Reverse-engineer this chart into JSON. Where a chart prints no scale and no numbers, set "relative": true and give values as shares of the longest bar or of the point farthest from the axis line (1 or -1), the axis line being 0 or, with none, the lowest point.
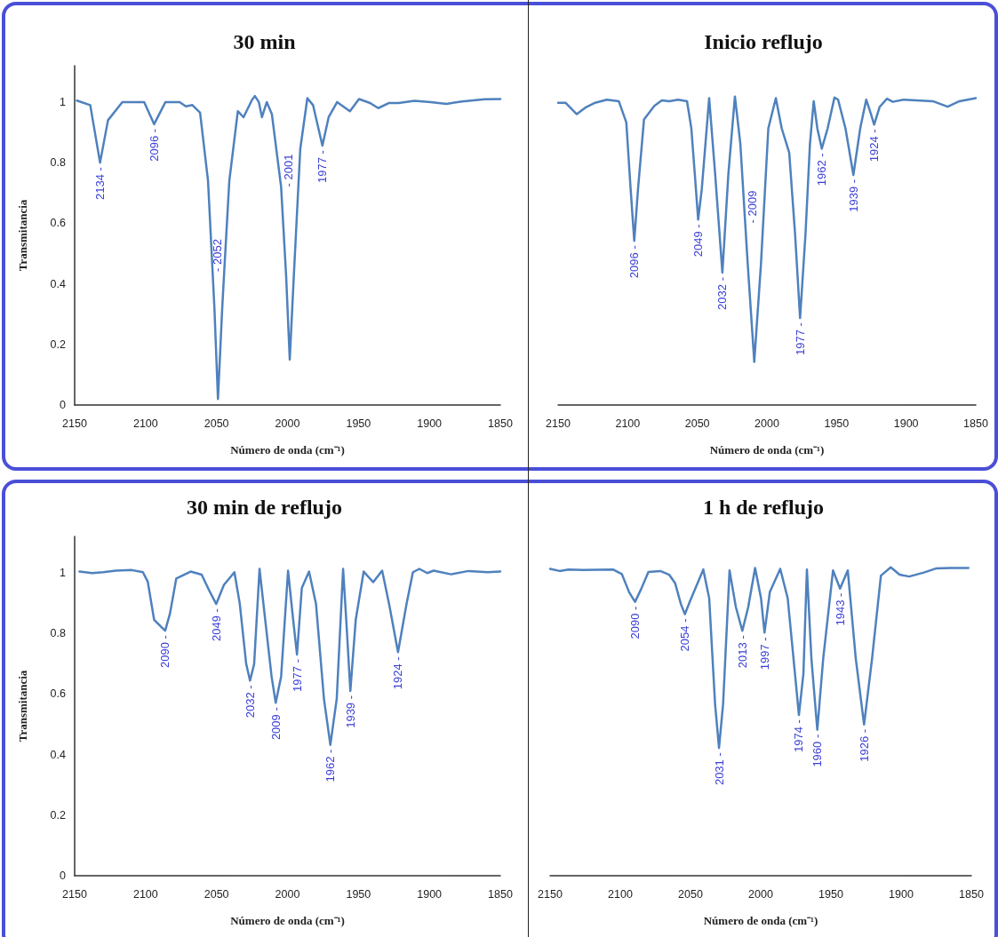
{
  "chart_data": [
    {
      "type": "line",
      "title": "30 min",
      "xlabel": "Número de onda (cm⁻¹)",
      "ylabel": "Transmitancia",
      "color": "#4f81bd",
      "xlim": [
        2150,
        1850
      ],
      "xticks": [
        2150,
        2100,
        2050,
        2000,
        1950,
        1900,
        1850
      ],
      "ylim": [
        0,
        1.12
      ],
      "yticks": [
        0,
        0.2,
        0.4,
        0.6,
        0.8,
        1
      ],
      "x": [
        2148.4,
        2139,
        2132.1,
        2126.5,
        2116.4,
        2101,
        2094,
        2086,
        2076,
        2071.6,
        2067,
        2061.6,
        2056,
        2051.5,
        2049,
        2046,
        2044.6,
        2041,
        2035,
        2031,
        2025,
        2023,
        2020.2,
        2018,
        2014.6,
        2011,
        2004.5,
        2001,
        1998.4,
        1995.5,
        1991,
        1986,
        1982,
        1975.4,
        1971,
        1965,
        1956,
        1949.6,
        1941.8,
        1936,
        1928.4,
        1921.7,
        1910.5,
        1899,
        1888,
        1877,
        1861,
        1850
      ],
      "values": [
        1.005,
        0.99,
        0.8,
        0.94,
        1.0,
        1.0,
        0.927,
        1.0,
        1.0,
        0.986,
        0.99,
        0.965,
        0.74,
        0.32,
        0.02,
        0.32,
        0.44,
        0.74,
        0.97,
        0.95,
        1.007,
        1.02,
        1.0,
        0.95,
        1.0,
        0.96,
        0.72,
        0.43,
        0.15,
        0.43,
        0.845,
        1.013,
        0.99,
        0.856,
        0.95,
        1.0,
        0.97,
        1.01,
        0.997,
        0.98,
        0.997,
        0.997,
        1.004,
        1.0,
        0.994,
        1.002,
        1.009,
        1.01
      ],
      "annotations": [
        {
          "text": "2134 -",
          "x": 2132.1,
          "y": 0.8
        },
        {
          "text": "2096 -",
          "x": 2094,
          "y": 0.927
        },
        {
          "text": "- 2052",
          "x": 2044.6,
          "y": 0.44
        },
        {
          "text": "- 2001",
          "x": 2004.5,
          "y": 0.72
        },
        {
          "text": "1977 -",
          "x": 1975.4,
          "y": 0.856
        }
      ]
    },
    {
      "type": "line",
      "title": "Inicio reflujo",
      "xlabel": "Número de onda (cm⁻¹)",
      "color": "#4f81bd",
      "xlim": [
        2150,
        1850
      ],
      "xticks": [
        2150,
        2100,
        2050,
        2000,
        1950,
        1900,
        1850
      ],
      "relative": true,
      "tick_labels": "x",
      "x": [
        2150,
        2144.7,
        2136.6,
        2129.8,
        2123.4,
        2115,
        2106.4,
        2101,
        2097.9,
        2095.3,
        2092.6,
        2088.3,
        2080.9,
        2075.5,
        2070.2,
        2063.8,
        2057.4,
        2054.3,
        2051,
        2049.4,
        2046.8,
        2041.5,
        2037.2,
        2032,
        2027.7,
        2023,
        2019.1,
        2015.6,
        2013.8,
        2009.1,
        2004.3,
        1999,
        1993.6,
        1989.4,
        1984,
        1979.8,
        1976.2,
        1972.3,
        1969.1,
        1966.4,
        1963.8,
        1960.6,
        1956.4,
        1951.5,
        1948.9,
        1943.6,
        1937.9,
        1933,
        1928.7,
        1925.5,
        1923,
        1919.1,
        1913.8,
        1909.6,
        1902,
        1880.9,
        1870.2,
        1861.7,
        1850
      ],
      "values": [
        0.98,
        0.98,
        0.943,
        0.966,
        0.98,
        0.99,
        0.985,
        0.916,
        0.7,
        0.532,
        0.7,
        0.926,
        0.97,
        0.988,
        0.985,
        0.99,
        0.985,
        0.897,
        0.7,
        0.601,
        0.7,
        0.995,
        0.749,
        0.429,
        0.749,
        1,
        0.847,
        0.589,
        0.457,
        0.14,
        0.457,
        0.897,
        0.995,
        0.897,
        0.818,
        0.555,
        0.282,
        0.555,
        0.847,
        0.985,
        0.897,
        0.831,
        0.897,
        0.997,
        0.99,
        0.897,
        0.746,
        0.897,
        0.99,
        0.946,
        0.909,
        0.966,
        0.993,
        0.983,
        0.99,
        0.985,
        0.967,
        0.985,
        0.995
      ],
      "annotations": [
        {
          "text": "2096 -",
          "x": 2095.3,
          "y": 0.532
        },
        {
          "text": "2049 -",
          "x": 2049.4,
          "y": 0.601
        },
        {
          "text": "2032 -",
          "x": 2032,
          "y": 0.429
        },
        {
          "text": "- 2009",
          "x": 2015.6,
          "y": 0.589
        },
        {
          "text": "1977 -",
          "x": 1976.2,
          "y": 0.282
        },
        {
          "text": "1962 -",
          "x": 1960.6,
          "y": 0.831
        },
        {
          "text": "1939 -",
          "x": 1937.9,
          "y": 0.746
        },
        {
          "text": "1924 -",
          "x": 1923,
          "y": 0.909
        }
      ]
    },
    {
      "type": "line",
      "title": "30 min de reflujo",
      "xlabel": "Número de onda (cm⁻¹)",
      "ylabel": "Transmitancia",
      "color": "#4f81bd",
      "xlim": [
        2150,
        1850
      ],
      "xticks": [
        2150,
        2100,
        2050,
        2000,
        1950,
        1900,
        1850
      ],
      "ylim": [
        0,
        1.12
      ],
      "yticks": [
        0,
        0.2,
        0.4,
        0.6,
        0.8,
        1
      ],
      "x": [
        2146.6,
        2137.7,
        2129.9,
        2120.9,
        2109.7,
        2101.9,
        2098.5,
        2094,
        2089.6,
        2086.2,
        2082.8,
        2078.4,
        2068.3,
        2060.5,
        2054.9,
        2050.2,
        2044.8,
        2037.4,
        2033.6,
        2029.1,
        2026.4,
        2023.5,
        2019.7,
        2015.7,
        2011.2,
        2008.3,
        2004.5,
        1999.6,
        1996,
        1993.3,
        1989.9,
        1984.8,
        1979.9,
        1974.3,
        1969.8,
        1965.3,
        1960.8,
        1958.6,
        1955.7,
        1951.9,
        1946.3,
        1939.6,
        1933.3,
        1928.4,
        1922.1,
        1916.1,
        1911.6,
        1907.1,
        1901.5,
        1897,
        1884.7,
        1872.4,
        1859,
        1850
      ],
      "values": [
        1.004,
        0.999,
        1.002,
        1.007,
        1.009,
        1.002,
        0.971,
        0.845,
        0.824,
        0.809,
        0.866,
        0.981,
        1.004,
        0.994,
        0.939,
        0.897,
        0.96,
        1.002,
        0.897,
        0.699,
        0.644,
        0.699,
        1.013,
        0.845,
        0.657,
        0.571,
        0.657,
        1.007,
        0.845,
        0.73,
        0.95,
        1.004,
        0.897,
        0.584,
        0.432,
        0.584,
        1.013,
        0.845,
        0.61,
        0.845,
        1.004,
        0.969,
        1.007,
        0.897,
        0.738,
        0.897,
        1.002,
        1.013,
        0.999,
        1.007,
        0.995,
        1.006,
        1.002,
        1.004
      ],
      "annotations": [
        {
          "text": "2090 -",
          "x": 2086.2,
          "y": 0.809
        },
        {
          "text": "2049 -",
          "x": 2050.2,
          "y": 0.897
        },
        {
          "text": "2032 -",
          "x": 2026.4,
          "y": 0.644
        },
        {
          "text": "2009 -",
          "x": 2008.3,
          "y": 0.571
        },
        {
          "text": "1977 -",
          "x": 1993.3,
          "y": 0.73
        },
        {
          "text": "1962 -",
          "x": 1969.8,
          "y": 0.432
        },
        {
          "text": "1939 -",
          "x": 1955.7,
          "y": 0.61
        },
        {
          "text": "1924 -",
          "x": 1922.1,
          "y": 0.738
        }
      ]
    },
    {
      "type": "line",
      "title": "1 h de reflujo",
      "xlabel": "Número de onda (cm⁻¹)",
      "color": "#4f81bd",
      "xlim": [
        2150,
        1850
      ],
      "xticks": [
        2150,
        2100,
        2050,
        2000,
        1950,
        1900,
        1850
      ],
      "relative": true,
      "tick_labels": "x",
      "x": [
        2150,
        2143.2,
        2136.9,
        2126.4,
        2105.3,
        2098.9,
        2093.7,
        2089.5,
        2085.2,
        2080,
        2071.5,
        2065.2,
        2061,
        2056.8,
        2054,
        2050.4,
        2040.9,
        2036.7,
        2032.5,
        2029.7,
        2026.8,
        2022.2,
        2017.7,
        2013.1,
        2008.9,
        2004,
        1999.8,
        1997.3,
        1993.5,
        1986.1,
        1980.8,
        1975.6,
        1972.8,
        1969.6,
        1967.1,
        1963.9,
        1959.7,
        1955.5,
        1948.5,
        1943.5,
        1938,
        1932.3,
        1926.4,
        1920.7,
        1914.4,
        1907.4,
        1901.1,
        1894.3,
        1883.8,
        1875.3,
        1864.8,
        1852.1
      ],
      "values": [
        0.995,
        0.988,
        0.993,
        0.991,
        0.993,
        0.978,
        0.919,
        0.888,
        0.929,
        0.985,
        0.988,
        0.976,
        0.949,
        0.88,
        0.848,
        0.89,
        0.993,
        0.9,
        0.556,
        0.414,
        0.556,
        0.99,
        0.871,
        0.794,
        0.871,
        0.998,
        0.9,
        0.788,
        0.92,
        0.995,
        0.9,
        0.655,
        0.521,
        0.655,
        0.993,
        0.704,
        0.473,
        0.704,
        0.99,
        0.931,
        0.99,
        0.704,
        0.49,
        0.704,
        0.973,
        1,
        0.976,
        0.97,
        0.983,
        0.996,
        0.998,
        0.998
      ],
      "annotations": [
        {
          "text": "2090 -",
          "x": 2089.5,
          "y": 0.888
        },
        {
          "text": "2054 -",
          "x": 2054,
          "y": 0.848
        },
        {
          "text": "2031 -",
          "x": 2029.7,
          "y": 0.414
        },
        {
          "text": "2013 -",
          "x": 2013.1,
          "y": 0.794
        },
        {
          "text": "1997 -",
          "x": 1997.3,
          "y": 0.788
        },
        {
          "text": "1974 -",
          "x": 1972.8,
          "y": 0.521
        },
        {
          "text": "1960 -",
          "x": 1959.7,
          "y": 0.473
        },
        {
          "text": "1943 -",
          "x": 1943.5,
          "y": 0.931
        },
        {
          "text": "1926 -",
          "x": 1926.4,
          "y": 0.49
        }
      ]
    }
  ]
}
